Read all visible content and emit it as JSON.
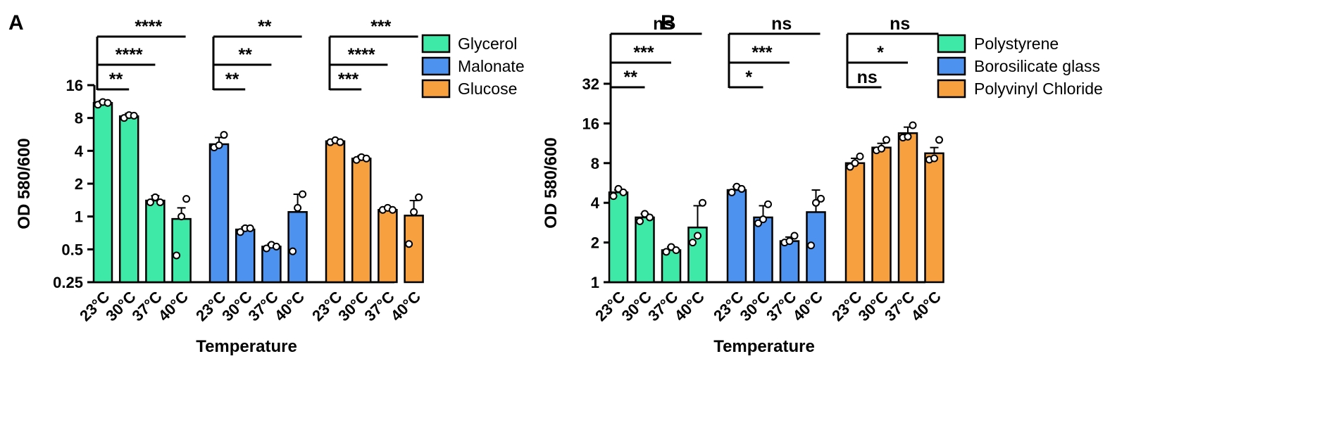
{
  "chart_data": [
    {
      "panel": "A",
      "type": "bar",
      "xlabel": "Temperature",
      "ylabel": "OD 580/600",
      "yscale": "log2",
      "ylim": [
        0.25,
        16
      ],
      "yticks": [
        0.25,
        0.5,
        1,
        2,
        4,
        8,
        16
      ],
      "ytick_labels": [
        "0.25",
        "0.5",
        "1",
        "2",
        "4",
        "8",
        "16"
      ],
      "colors": [
        "#3ee8a6",
        "#4c92ee",
        "#f7a040"
      ],
      "legend_position": "top-right",
      "groups": [
        {
          "name": "Glycerol",
          "categories": [
            "23°C",
            "30°C",
            "37°C",
            "40°C"
          ],
          "means": [
            11.0,
            8.3,
            1.4,
            0.95
          ],
          "error_up": [
            11.5,
            8.8,
            1.55,
            1.2
          ],
          "points": [
            [
              10.6,
              11.2,
              11.0
            ],
            [
              8.0,
              8.5,
              8.4
            ],
            [
              1.35,
              1.5,
              1.35
            ],
            [
              0.44,
              1.0,
              1.45
            ]
          ],
          "significance": [
            {
              "label": "****",
              "to": "40°C"
            },
            {
              "label": "****",
              "to": "37°C"
            },
            {
              "label": "**",
              "to": "30°C"
            }
          ]
        },
        {
          "name": "Malonate",
          "categories": [
            "23°C",
            "30°C",
            "37°C",
            "40°C"
          ],
          "means": [
            4.6,
            0.76,
            0.53,
            1.1
          ],
          "error_up": [
            5.3,
            0.8,
            0.56,
            1.6
          ],
          "points": [
            [
              4.3,
              4.5,
              5.6
            ],
            [
              0.72,
              0.78,
              0.78
            ],
            [
              0.51,
              0.55,
              0.53
            ],
            [
              0.48,
              1.2,
              1.6
            ]
          ],
          "significance": [
            {
              "label": "**",
              "to": "40°C"
            },
            {
              "label": "**",
              "to": "37°C"
            },
            {
              "label": "**",
              "to": "30°C"
            }
          ]
        },
        {
          "name": "Glucose",
          "categories": [
            "23°C",
            "30°C",
            "37°C",
            "40°C"
          ],
          "means": [
            4.9,
            3.4,
            1.15,
            1.02
          ],
          "error_up": [
            5.0,
            3.6,
            1.2,
            1.4
          ],
          "points": [
            [
              4.8,
              5.0,
              4.8
            ],
            [
              3.3,
              3.5,
              3.4
            ],
            [
              1.15,
              1.2,
              1.15
            ],
            [
              0.56,
              1.1,
              1.5
            ]
          ],
          "significance": [
            {
              "label": "***",
              "to": "40°C"
            },
            {
              "label": "****",
              "to": "37°C"
            },
            {
              "label": "***",
              "to": "30°C"
            }
          ]
        }
      ]
    },
    {
      "panel": "B",
      "type": "bar",
      "xlabel": "Temperature",
      "ylabel": "OD 580/600",
      "yscale": "log2",
      "ylim": [
        1,
        32
      ],
      "yticks": [
        1,
        2,
        4,
        8,
        16,
        32
      ],
      "ytick_labels": [
        "1",
        "2",
        "4",
        "8",
        "16",
        "32"
      ],
      "colors": [
        "#3ee8a6",
        "#4c92ee",
        "#f7a040"
      ],
      "legend_position": "top-right",
      "groups": [
        {
          "name": "Polystyrene",
          "categories": [
            "23°C",
            "30°C",
            "37°C",
            "40°C"
          ],
          "means": [
            4.8,
            3.1,
            1.75,
            2.6
          ],
          "error_up": [
            5.0,
            3.3,
            1.85,
            3.8
          ],
          "points": [
            [
              4.5,
              5.1,
              4.8
            ],
            [
              2.9,
              3.3,
              3.1
            ],
            [
              1.7,
              1.85,
              1.75
            ],
            [
              2.0,
              2.25,
              4.0
            ]
          ],
          "significance": [
            {
              "label": "ns",
              "to": "40°C"
            },
            {
              "label": "***",
              "to": "37°C"
            },
            {
              "label": "**",
              "to": "30°C"
            }
          ]
        },
        {
          "name": "Borosilicate glass",
          "categories": [
            "23°C",
            "30°C",
            "37°C",
            "40°C"
          ],
          "means": [
            5.0,
            3.1,
            2.05,
            3.4
          ],
          "error_up": [
            5.3,
            3.8,
            2.2,
            5.0
          ],
          "points": [
            [
              4.8,
              5.3,
              5.1
            ],
            [
              2.8,
              3.0,
              3.9
            ],
            [
              2.0,
              2.05,
              2.25
            ],
            [
              1.9,
              4.0,
              4.3
            ]
          ],
          "significance": [
            {
              "label": "ns",
              "to": "40°C"
            },
            {
              "label": "***",
              "to": "37°C"
            },
            {
              "label": "*",
              "to": "30°C"
            }
          ]
        },
        {
          "name": "Polyvinyl Chloride",
          "categories": [
            "23°C",
            "30°C",
            "37°C",
            "40°C"
          ],
          "means": [
            8.0,
            10.5,
            13.5,
            9.5
          ],
          "error_up": [
            8.7,
            11.3,
            15.0,
            10.5
          ],
          "points": [
            [
              7.5,
              8.0,
              9.0
            ],
            [
              10.0,
              10.3,
              12.0
            ],
            [
              12.5,
              12.7,
              15.5
            ],
            [
              8.5,
              8.7,
              12.0
            ]
          ],
          "significance": [
            {
              "label": "ns",
              "to": "40°C"
            },
            {
              "label": "*",
              "to": "37°C"
            },
            {
              "label": "ns",
              "to": "30°C"
            }
          ]
        }
      ]
    }
  ]
}
